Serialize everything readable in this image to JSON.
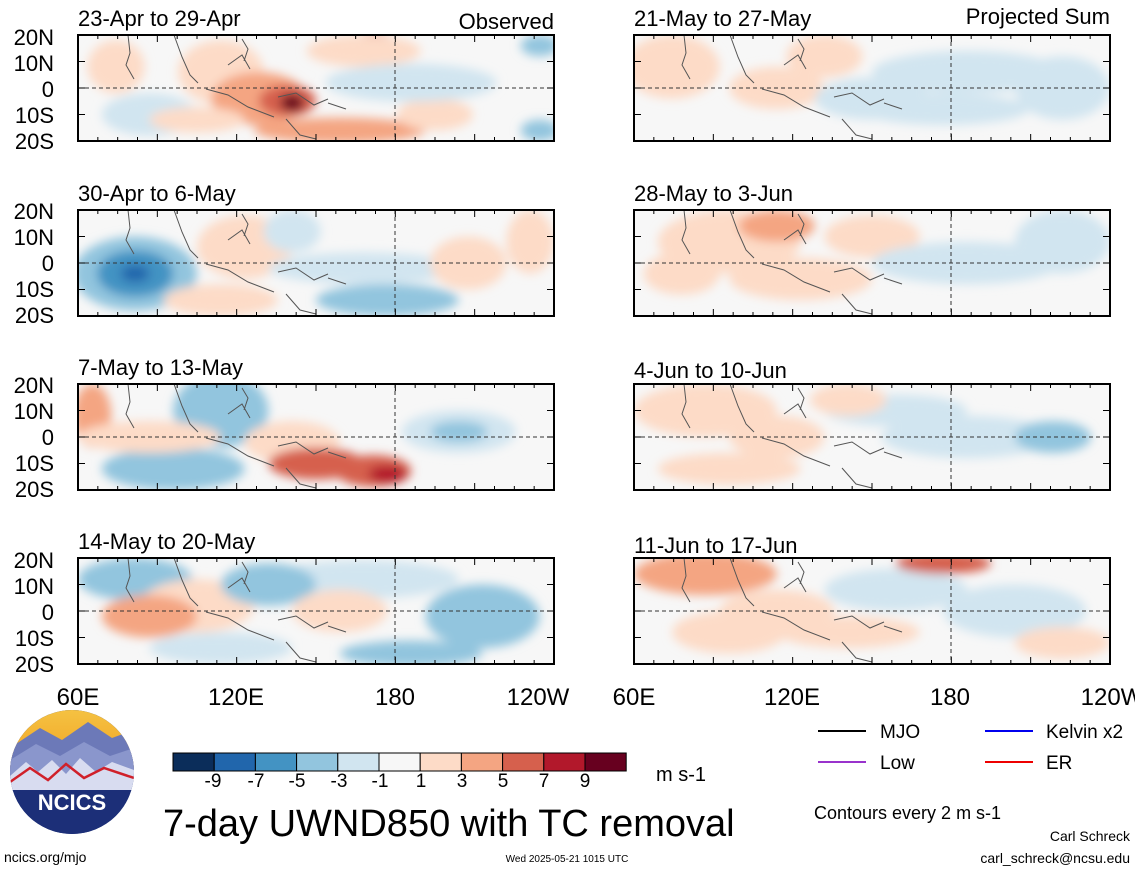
{
  "panels": {
    "observed_label": "Observed",
    "projected_label": "Projected Sum",
    "left": [
      {
        "period": "23-Apr to 29-Apr"
      },
      {
        "period": "30-Apr to 6-May"
      },
      {
        "period": "7-May to 13-May"
      },
      {
        "period": "14-May to 20-May"
      }
    ],
    "right": [
      {
        "period": "21-May to 27-May"
      },
      {
        "period": "28-May to 3-Jun"
      },
      {
        "period": "4-Jun to 10-Jun"
      },
      {
        "period": "11-Jun to 17-Jun"
      }
    ],
    "lat_labels": [
      "20N",
      "10N",
      "0",
      "10S",
      "20S"
    ],
    "lon_labels": [
      "60E",
      "120E",
      "180",
      "120W"
    ]
  },
  "colorbar": {
    "ticks": [
      "-9",
      "-7",
      "-5",
      "-3",
      "-1",
      "1",
      "3",
      "5",
      "7",
      "9"
    ],
    "colors": [
      "#0b2d5a",
      "#2166ac",
      "#4393c3",
      "#92c5de",
      "#d1e5f0",
      "#f7f7f7",
      "#fddbc7",
      "#f4a582",
      "#d6604d",
      "#b2182b",
      "#67001f"
    ],
    "units": "m s-1"
  },
  "legend": {
    "items": [
      {
        "label": "MJO",
        "color": "#000000"
      },
      {
        "label": "Kelvin x2",
        "color": "#0000ee"
      },
      {
        "label": "Low",
        "color": "#9933cc"
      },
      {
        "label": "ER",
        "color": "#ee0000"
      }
    ],
    "contour_note": "Contours every 2 m s-1"
  },
  "logo": {
    "text": "NCICS"
  },
  "title": "7-day UWND850 with TC removal",
  "footer": {
    "url": "ncics.org/mjo",
    "timestamp": "Wed 2025-05-21 1015 UTC",
    "author": "Carl Schreck",
    "email": "carl_schreck@ncsu.edu"
  }
}
